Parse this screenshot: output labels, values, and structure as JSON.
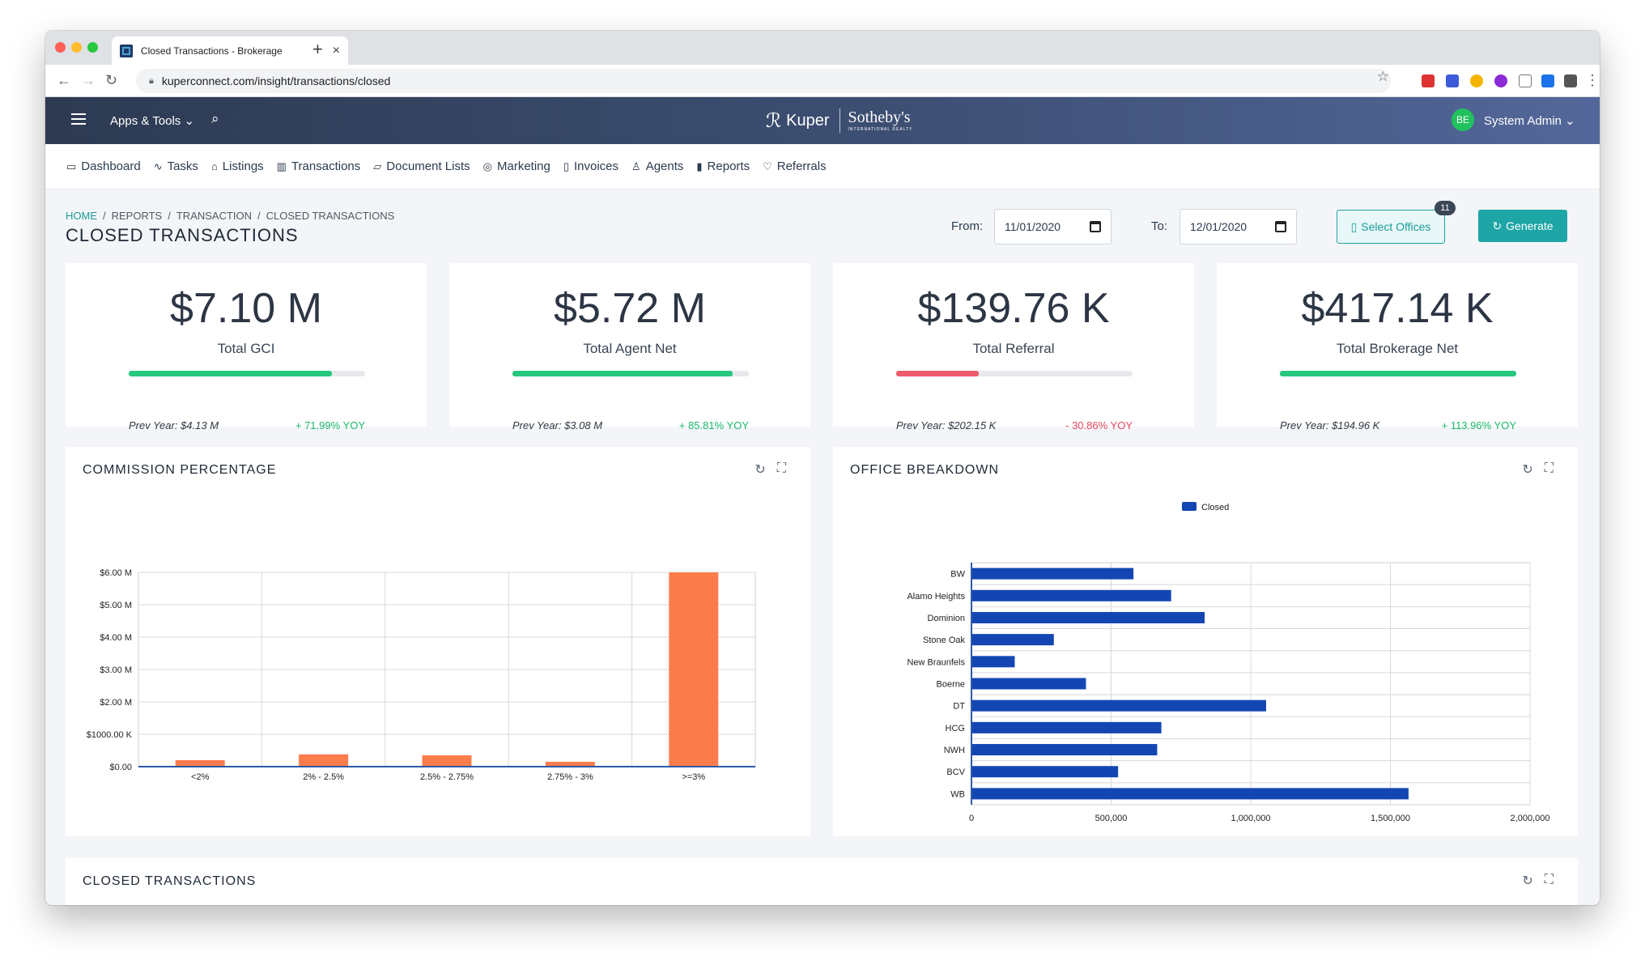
{
  "browser": {
    "tab_title": "Closed Transactions - Brokerage",
    "url": "kuperconnect.com/insight/transactions/closed"
  },
  "header": {
    "apps_tools": "Apps & Tools ⌄",
    "logo_kuper": "Kuper",
    "logo_sothebys": "Sotheby's",
    "logo_sub": "INTERNATIONAL REALTY",
    "user_initials": "BE",
    "user_name": "System Admin ⌄"
  },
  "nav": {
    "items": [
      {
        "label": "Dashboard",
        "icon": "monitor-icon"
      },
      {
        "label": "Tasks",
        "icon": "activity-icon"
      },
      {
        "label": "Listings",
        "icon": "home-icon"
      },
      {
        "label": "Transactions",
        "icon": "building-icon"
      },
      {
        "label": "Document Lists",
        "icon": "folder-icon"
      },
      {
        "label": "Marketing",
        "icon": "globe-icon"
      },
      {
        "label": "Invoices",
        "icon": "file-icon"
      },
      {
        "label": "Agents",
        "icon": "user-icon"
      },
      {
        "label": "Reports",
        "icon": "bar-chart-icon"
      },
      {
        "label": "Referrals",
        "icon": "heart-icon"
      }
    ]
  },
  "breadcrumb": [
    "HOME",
    "/",
    "REPORTS",
    "/",
    "TRANSACTION",
    "/",
    "CLOSED TRANSACTIONS"
  ],
  "page": {
    "title": "CLOSED TRANSACTIONS",
    "from_label": "From:",
    "from_value": "11/01/2020",
    "to_label": "To:",
    "to_value": "12/01/2020",
    "select_offices": "Select Offices",
    "office_count": "11",
    "generate": "Generate"
  },
  "kpis": [
    {
      "value": "$7.10 M",
      "label": "Total GCI",
      "prev": "Prev Year: $4.13 M",
      "yoy": "+ 71.99% YOY",
      "progress": 0.86,
      "color": "#28c77f",
      "yoy_color": "#19b96a"
    },
    {
      "value": "$5.72 M",
      "label": "Total Agent Net",
      "prev": "Prev Year: $3.08 M",
      "yoy": "+ 85.81% YOY",
      "progress": 0.93,
      "color": "#28c77f",
      "yoy_color": "#19b96a"
    },
    {
      "value": "$139.76 K",
      "label": "Total Referral",
      "prev": "Prev Year: $202.15 K",
      "yoy": "- 30.86% YOY",
      "progress": 0.35,
      "color": "#f05b6f",
      "yoy_color": "#e8455c"
    },
    {
      "value": "$417.14 K",
      "label": "Total Brokerage Net",
      "prev": "Prev Year: $194.96 K",
      "yoy": "+ 113.96% YOY",
      "progress": 1.0,
      "color": "#28c77f",
      "yoy_color": "#19b96a"
    }
  ],
  "cards": {
    "commission_title": "COMMISSION PERCENTAGE",
    "office_title": "OFFICE BREAKDOWN",
    "closed_title": "CLOSED TRANSACTIONS"
  },
  "chart_data": [
    {
      "type": "bar",
      "title": "COMMISSION PERCENTAGE",
      "categories": [
        "<2%",
        "2% - 2.5%",
        "2.5% - 2.75%",
        "2.75% - 3%",
        ">=3%"
      ],
      "values": [
        0.2,
        0.38,
        0.35,
        0.15,
        6.0
      ],
      "unit": "$M",
      "yticks": [
        "$0.00",
        "$1000.00 K",
        "$2.00 M",
        "$3.00 M",
        "$4.00 M",
        "$5.00 M",
        "$6.00 M"
      ],
      "ylim": [
        0,
        6
      ],
      "color": "#fc7c4c",
      "grid": true
    },
    {
      "type": "bar",
      "orientation": "horizontal",
      "title": "OFFICE BREAKDOWN",
      "categories": [
        "BW",
        "Alamo Heights",
        "Dominion",
        "Stone Oak",
        "New Braunfels",
        "Boerne",
        "DT",
        "HCG",
        "NWH",
        "BCV",
        "WB"
      ],
      "series": [
        {
          "name": "Closed",
          "values": [
            580000,
            715000,
            835000,
            295000,
            155000,
            410000,
            1055000,
            680000,
            665000,
            525000,
            1565000
          ]
        }
      ],
      "xticks": [
        "0",
        "500,000",
        "1,000,000",
        "1,500,000",
        "2,000,000"
      ],
      "xlim": [
        0,
        2000000
      ],
      "legend": "top-center",
      "color": "#1446b3",
      "grid": true
    }
  ]
}
